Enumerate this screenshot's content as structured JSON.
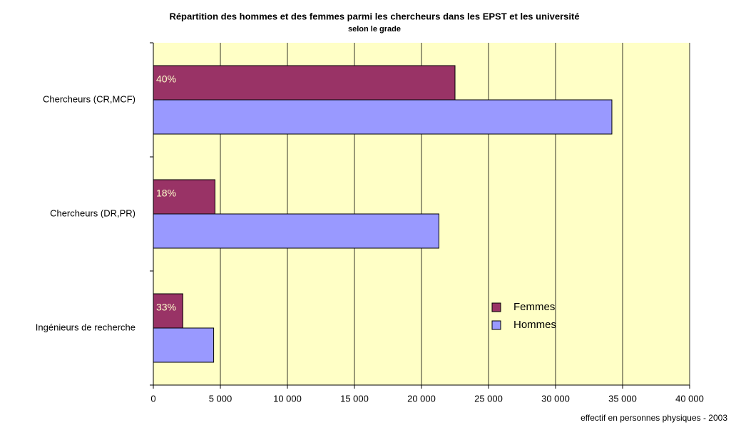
{
  "chart_data": {
    "type": "hbar",
    "title": "Répartition des hommes et des femmes parmi  les chercheurs dans les EPST et les université",
    "subtitle": "selon le grade",
    "x_label": "effectif en personnes physiques - 2003",
    "categories": [
      "Chercheurs  (CR,MCF)",
      "Chercheurs  (DR,PR)",
      "Ingénieurs de  recherche"
    ],
    "series": [
      {
        "name": "Femmes",
        "color": "#993366",
        "values": [
          22500,
          4600,
          2200
        ]
      },
      {
        "name": "Hommes",
        "color": "#9999ff",
        "values": [
          34200,
          21300,
          4500
        ]
      }
    ],
    "annotations": [
      "40%",
      "18%",
      "33%"
    ],
    "xlim": [
      0,
      40000
    ],
    "xticks": [
      0,
      {
        "value": 5000,
        "label": "5 000"
      },
      {
        "value": 10000,
        "label": "10 000"
      },
      {
        "value": 15000,
        "label": "15 000"
      },
      {
        "value": 20000,
        "label": "20 000"
      },
      {
        "value": 25000,
        "label": "25 000"
      },
      {
        "value": 30000,
        "label": "30 000"
      },
      {
        "value": 35000,
        "label": "35 000"
      },
      {
        "value": 40000,
        "label": "40 000"
      }
    ],
    "grid": true,
    "legend": "lower right"
  }
}
